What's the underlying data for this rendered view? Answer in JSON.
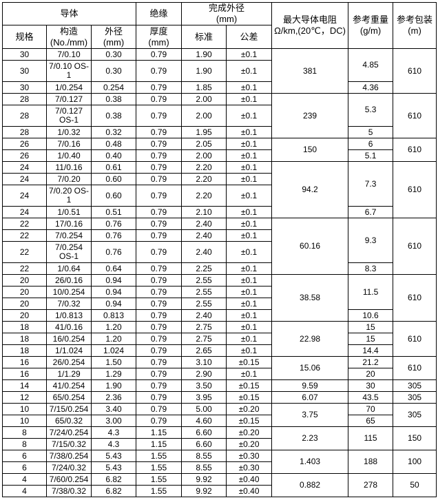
{
  "header": {
    "conductor": "导体",
    "insulation": "绝缘",
    "finished_od": "完成外径",
    "finished_od_unit": "(mm)",
    "resistance": "最大导体电阻",
    "resistance_unit": "Ω/km,(20℃，DC)",
    "weight": "参考重量",
    "weight_unit": "(g/m)",
    "packaging": "参考包装",
    "packaging_unit": "(m)",
    "gauge": "规格",
    "construction": "构造",
    "construction_unit": "(No./mm)",
    "conductor_od": "外径",
    "conductor_od_unit": "(mm)",
    "thickness": "厚度",
    "thickness_unit": "(mm)",
    "standard": "标准",
    "tolerance": "公差"
  },
  "groups": [
    {
      "resistance": "381",
      "packaging": "610",
      "weights": [
        {
          "value": "4.85",
          "span": 2
        },
        {
          "value": "4.36",
          "span": 1
        }
      ],
      "rows": [
        [
          "30",
          "7/0.10",
          "0.30",
          "0.79",
          "1.90",
          "±0.1"
        ],
        [
          "30",
          "7/0.10 OS-1",
          "0.30",
          "0.79",
          "1.90",
          "±0.1"
        ],
        [
          "30",
          "1/0.254",
          "0.254",
          "0.79",
          "1.85",
          "±0.1"
        ]
      ]
    },
    {
      "resistance": "239",
      "packaging": "610",
      "weights": [
        {
          "value": "5.3",
          "span": 2
        },
        {
          "value": "5",
          "span": 1
        }
      ],
      "rows": [
        [
          "28",
          "7/0.127",
          "0.38",
          "0.79",
          "2.00",
          "±0.1"
        ],
        [
          "28",
          "7/0.127 OS-1",
          "0.38",
          "0.79",
          "2.00",
          "±0.1"
        ],
        [
          "28",
          "1/0.32",
          "0.32",
          "0.79",
          "1.95",
          "±0.1"
        ]
      ]
    },
    {
      "resistance": "150",
      "packaging": "610",
      "weights": [
        {
          "value": "6",
          "span": 1
        },
        {
          "value": "5.1",
          "span": 1
        }
      ],
      "rows": [
        [
          "26",
          "7/0.16",
          "0.48",
          "0.79",
          "2.05",
          "±0.1"
        ],
        [
          "26",
          "1/0.40",
          "0.40",
          "0.79",
          "2.00",
          "±0.1"
        ]
      ]
    },
    {
      "resistance": "94.2",
      "packaging": "610",
      "weights": [
        {
          "value": "7.3",
          "span": 3
        },
        {
          "value": "6.7",
          "span": 1
        }
      ],
      "rows": [
        [
          "24",
          "11/0.16",
          "0.61",
          "0.79",
          "2.20",
          "±0.1"
        ],
        [
          "24",
          "7/0.20",
          "0.60",
          "0.79",
          "2.20",
          "±0.1"
        ],
        [
          "24",
          "7/0.20 OS-1",
          "0.60",
          "0.79",
          "2.20",
          "±0.1"
        ],
        [
          "24",
          "1/0.51",
          "0.51",
          "0.79",
          "2.10",
          "±0.1"
        ]
      ]
    },
    {
      "resistance": "60.16",
      "packaging": "610",
      "weights": [
        {
          "value": "9.3",
          "span": 3
        },
        {
          "value": "8.3",
          "span": 1
        }
      ],
      "rows": [
        [
          "22",
          "17/0.16",
          "0.76",
          "0.79",
          "2.40",
          "±0.1"
        ],
        [
          "22",
          "7/0.254",
          "0.76",
          "0.79",
          "2.40",
          "±0.1"
        ],
        [
          "22",
          "7/0.254 OS-1",
          "0.76",
          "0.79",
          "2.40",
          "±0.1"
        ],
        [
          "22",
          "1/0.64",
          "0.64",
          "0.79",
          "2.25",
          "±0.1"
        ]
      ]
    },
    {
      "resistance": "38.58",
      "packaging": "610",
      "weights": [
        {
          "value": "11.5",
          "span": 3
        },
        {
          "value": "10.6",
          "span": 1
        }
      ],
      "rows": [
        [
          "20",
          "26/0.16",
          "0.94",
          "0.79",
          "2.55",
          "±0.1"
        ],
        [
          "20",
          "10/0.254",
          "0.94",
          "0.79",
          "2.55",
          "±0.1"
        ],
        [
          "20",
          "7/0.32",
          "0.94",
          "0.79",
          "2.55",
          "±0.1"
        ],
        [
          "20",
          "1/0.813",
          "0.813",
          "0.79",
          "2.40",
          "±0.1"
        ]
      ]
    },
    {
      "resistance": "22.98",
      "packaging": "610",
      "weights": [
        {
          "value": "15",
          "span": 1
        },
        {
          "value": "15",
          "span": 1
        },
        {
          "value": "14.4",
          "span": 1
        }
      ],
      "rows": [
        [
          "18",
          "41/0.16",
          "1.20",
          "0.79",
          "2.75",
          "±0.1"
        ],
        [
          "18",
          "16/0.254",
          "1.20",
          "0.79",
          "2.75",
          "±0.1"
        ],
        [
          "18",
          "1/1.024",
          "1.024",
          "0.79",
          "2.65",
          "±0.1"
        ]
      ]
    },
    {
      "resistance": "15.06",
      "packaging": "610",
      "weights": [
        {
          "value": "21.2",
          "span": 1
        },
        {
          "value": "20",
          "span": 1
        }
      ],
      "rows": [
        [
          "16",
          "26/0.254",
          "1.50",
          "0.79",
          "3.10",
          "±0.15"
        ],
        [
          "16",
          "1/1.29",
          "1.29",
          "0.79",
          "2.90",
          "±0.1"
        ]
      ]
    },
    {
      "resistance": "9.59",
      "packaging": "305",
      "weights": [
        {
          "value": "30",
          "span": 1
        }
      ],
      "rows": [
        [
          "14",
          "41/0.254",
          "1.90",
          "0.79",
          "3.50",
          "±0.15"
        ]
      ]
    },
    {
      "resistance": "6.07",
      "packaging": "305",
      "weights": [
        {
          "value": "43.5",
          "span": 1
        }
      ],
      "rows": [
        [
          "12",
          "65/0.254",
          "2.36",
          "0.79",
          "3.95",
          "±0.15"
        ]
      ]
    },
    {
      "resistance": "3.75",
      "packaging": "305",
      "weights": [
        {
          "value": "70",
          "span": 1
        },
        {
          "value": "65",
          "span": 1
        }
      ],
      "rows": [
        [
          "10",
          "7/15/0.254",
          "3.40",
          "0.79",
          "5.00",
          "±0.20"
        ],
        [
          "10",
          "65/0.32",
          "3.00",
          "0.79",
          "4.60",
          "±0.15"
        ]
      ]
    },
    {
      "resistance": "2.23",
      "packaging": "150",
      "weights": [
        {
          "value": "115",
          "span": 2
        }
      ],
      "rows": [
        [
          "8",
          "7/24/0.254",
          "4.3",
          "1.15",
          "6.60",
          "±0.20"
        ],
        [
          "8",
          "7/15/0.32",
          "4.3",
          "1.15",
          "6.60",
          "±0.20"
        ]
      ]
    },
    {
      "resistance": "1.403",
      "packaging": "100",
      "weights": [
        {
          "value": "188",
          "span": 2
        }
      ],
      "rows": [
        [
          "6",
          "7/38/0.254",
          "5.43",
          "1.55",
          "8.55",
          "±0.30"
        ],
        [
          "6",
          "7/24/0.32",
          "5.43",
          "1.55",
          "8.55",
          "±0.30"
        ]
      ]
    },
    {
      "resistance": "0.882",
      "packaging": "50",
      "weights": [
        {
          "value": "278",
          "span": 2
        }
      ],
      "rows": [
        [
          "4",
          "7/60/0.254",
          "6.82",
          "1.55",
          "9.92",
          "±0.40"
        ],
        [
          "4",
          "7/38/0.32",
          "6.82",
          "1.55",
          "9.92",
          "±0.40"
        ]
      ]
    }
  ]
}
